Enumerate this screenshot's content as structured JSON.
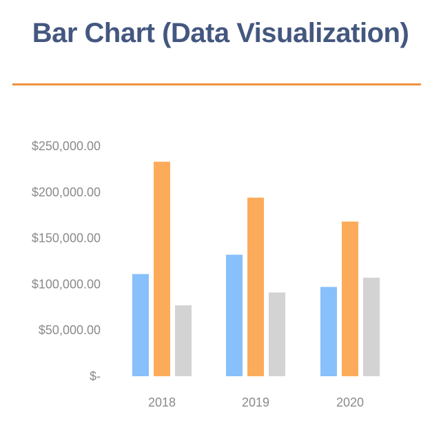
{
  "page": {
    "title": "Bar Chart (Data Visualization)"
  },
  "colors": {
    "title": "#44577f",
    "rule": "#f0913f",
    "series": [
      "#87c0fb",
      "#fcab5b",
      "#d3d3d3"
    ],
    "tick_text": "#8a8a8a"
  },
  "chart_data": {
    "type": "bar",
    "title": "",
    "xlabel": "",
    "ylabel": "",
    "categories": [
      "2018",
      "2019",
      "2020"
    ],
    "series": [
      {
        "values": [
          111000,
          132000,
          97000
        ]
      },
      {
        "values": [
          233000,
          194000,
          168000
        ]
      },
      {
        "values": [
          77000,
          91000,
          107000
        ]
      }
    ],
    "ylim": [
      0,
      250000
    ],
    "yticks": [
      {
        "value": 0,
        "label": "$-"
      },
      {
        "value": 50000,
        "label": "$50,000.00"
      },
      {
        "value": 100000,
        "label": "$100,000.00"
      },
      {
        "value": 150000,
        "label": "$150,000.00"
      },
      {
        "value": 200000,
        "label": "$200,000.00"
      },
      {
        "value": 250000,
        "label": "$250,000.00"
      }
    ],
    "grid": false,
    "legend": "none"
  }
}
